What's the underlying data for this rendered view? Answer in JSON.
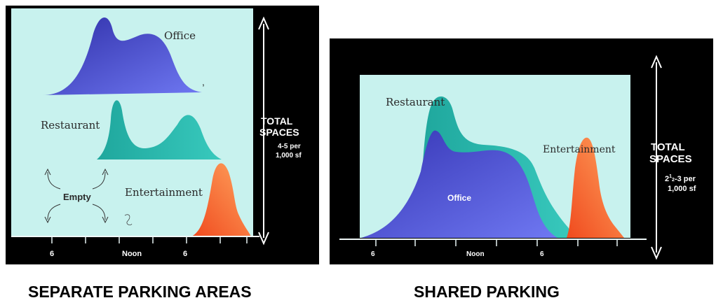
{
  "captions": {
    "left": "SEPARATE PARKING AREAS",
    "right": "SHARED PARKING"
  },
  "colors": {
    "background": "#000000",
    "plot_area": "#c8f2ee",
    "office": "#4140c2",
    "office_light": "#6a6ff0",
    "restaurant": "#2ab8ad",
    "entertainment": "#f2682c",
    "entertainment_light": "#ffa060",
    "text_on_plot": "#2a2a2a",
    "text_on_black": "#ffffff"
  },
  "chart_data": [
    {
      "type": "area",
      "title": "SEPARATE PARKING AREAS",
      "x_tick_labels": [
        "6",
        "Noon",
        "6"
      ],
      "series": [
        {
          "name": "Office",
          "color": "office"
        },
        {
          "name": "Restaurant",
          "color": "restaurant"
        },
        {
          "name": "Entertainment",
          "color": "entertainment"
        }
      ],
      "annotations": {
        "empty": "Empty",
        "total_line1": "TOTAL",
        "total_line2": "SPACES",
        "total_sub1": "4-5 per",
        "total_sub2": "1,000 sf"
      },
      "grid": false
    },
    {
      "type": "area",
      "title": "SHARED PARKING",
      "x_tick_labels": [
        "6",
        "Noon",
        "6"
      ],
      "series": [
        {
          "name": "Restaurant",
          "color": "restaurant"
        },
        {
          "name": "Office",
          "color": "office"
        },
        {
          "name": "Entertainment",
          "color": "entertainment"
        }
      ],
      "annotations": {
        "total_line1": "TOTAL",
        "total_line2": "SPACES",
        "total_sub_prefix": "2",
        "total_sub_sup": "1",
        "total_sub_sub": "2",
        "total_sub_rest": "-3 per",
        "total_sub2": "1,000 sf"
      },
      "grid": false
    }
  ]
}
